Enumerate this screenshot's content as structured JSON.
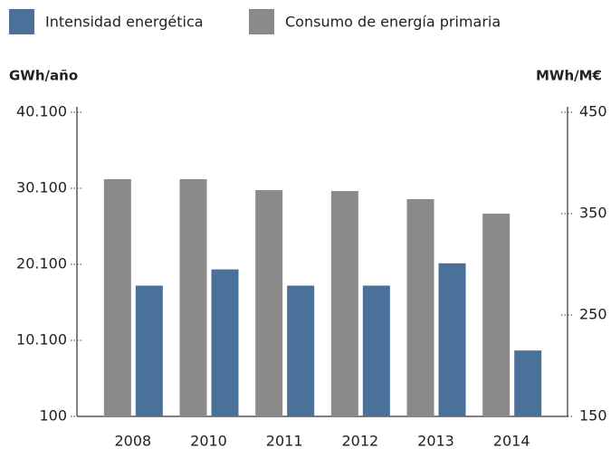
{
  "chart_data": {
    "type": "bar",
    "categories": [
      "2008",
      "2010",
      "2011",
      "2012",
      "2013",
      "2014"
    ],
    "series": [
      {
        "name": "Intensidad energética",
        "color": "#4a7199",
        "axis": "y2",
        "values": [
          279,
          295,
          279,
          279,
          301,
          215
        ]
      },
      {
        "name": "Consumo de energía primaria",
        "color": "#8a8a8a",
        "values": [
          31290,
          31290,
          29860,
          29740,
          28670,
          26770
        ]
      }
    ],
    "y_label": "GWh/año",
    "y2_label": "MWh/M€",
    "ylim": [
      100,
      40100
    ],
    "yticks": [
      100,
      {
        "value": 10100,
        "label": "10.100"
      },
      {
        "value": 20100,
        "label": "20.100"
      },
      {
        "value": 30100,
        "label": "30.100"
      },
      {
        "value": 40100,
        "label": "40.100"
      }
    ],
    "y2lim": [
      150,
      450
    ],
    "y2ticks": [
      150,
      250,
      350,
      450
    ]
  }
}
